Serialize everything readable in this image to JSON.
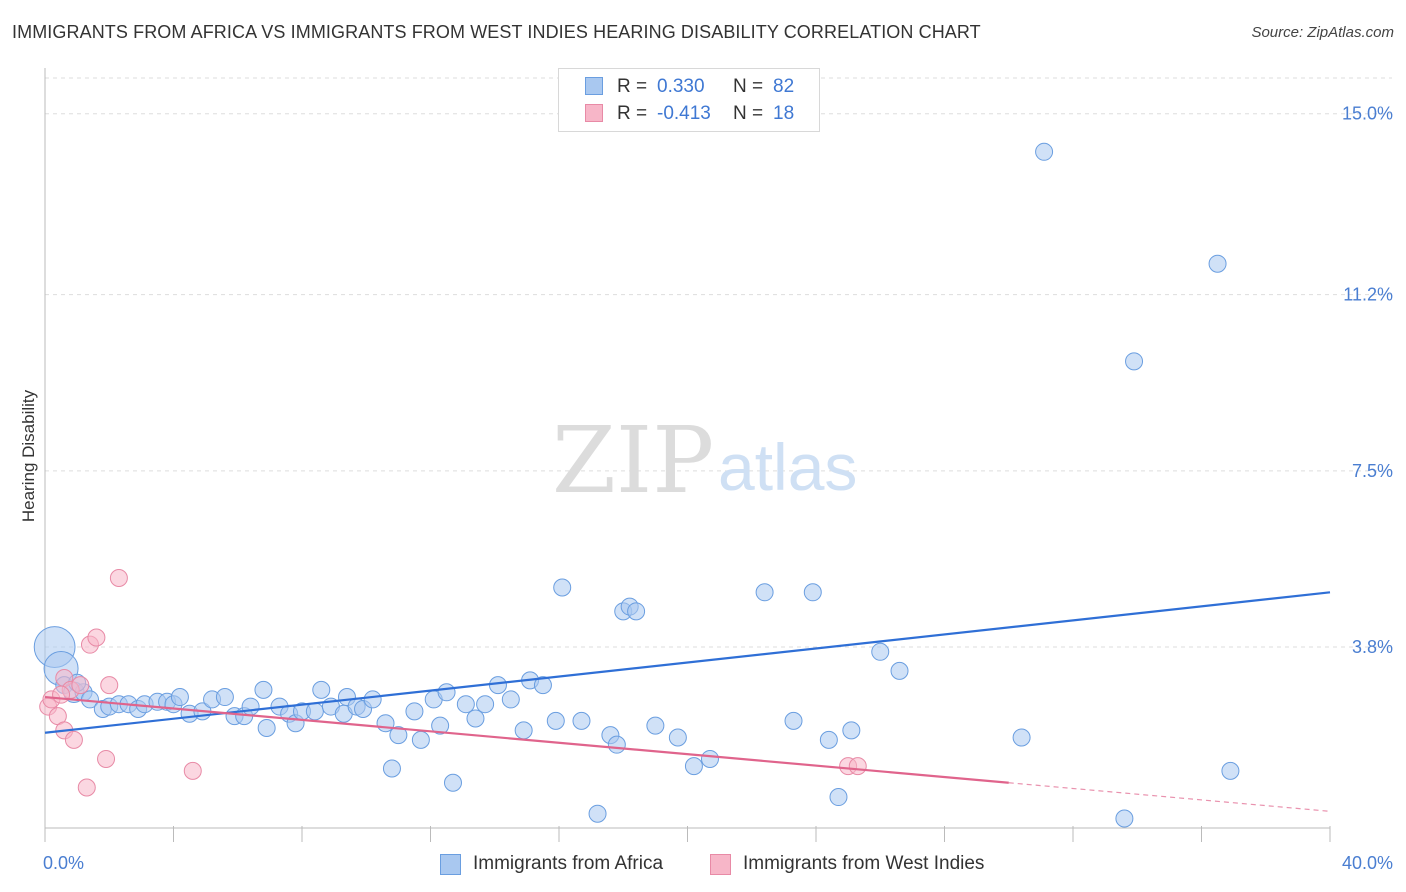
{
  "title": "IMMIGRANTS FROM AFRICA VS IMMIGRANTS FROM WEST INDIES HEARING DISABILITY CORRELATION CHART",
  "source": "Source: ZipAtlas.com",
  "watermark": {
    "part1": "ZIP",
    "part2": "atlas"
  },
  "colors": {
    "africa_fill": "#a9c8f0",
    "africa_stroke": "#6a9ee0",
    "africa_line": "#2f6fd6",
    "westindies_fill": "#f7b6c8",
    "westindies_stroke": "#e88aa6",
    "westindies_line": "#e0648c",
    "tick_text": "#4a7ed1",
    "grid": "#dddddd"
  },
  "legend": {
    "rows": [
      {
        "r_label": "R =",
        "r_value": "0.330",
        "n_label": "N =",
        "n_value": "82"
      },
      {
        "r_label": "R =",
        "r_value": "-0.413",
        "n_label": "N =",
        "n_value": "18"
      }
    ]
  },
  "bottom_legend": {
    "africa": "Immigrants from Africa",
    "westindies": "Immigrants from West Indies"
  },
  "chart_data": {
    "type": "scatter",
    "title": "IMMIGRANTS FROM AFRICA VS IMMIGRANTS FROM WEST INDIES HEARING DISABILITY CORRELATION CHART",
    "xlabel": "",
    "ylabel": "Hearing Disability",
    "xlim": [
      0,
      40
    ],
    "ylim": [
      0,
      15.75
    ],
    "x_tick_labels": [
      "0.0%",
      "40.0%"
    ],
    "y_ticks": [
      3.8,
      7.5,
      11.2,
      15.0
    ],
    "y_tick_labels": [
      "3.8%",
      "7.5%",
      "11.2%",
      "15.0%"
    ],
    "grid": true,
    "series": [
      {
        "name": "Immigrants from Africa",
        "trend": {
          "x": [
            0,
            40
          ],
          "y": [
            2.0,
            4.95
          ]
        },
        "points": [
          [
            0.3,
            3.8,
            2.4
          ],
          [
            0.5,
            3.35,
            2
          ],
          [
            0.6,
            3.0,
            1
          ],
          [
            0.9,
            2.85,
            1.2
          ],
          [
            1.2,
            2.85,
            1
          ],
          [
            1.4,
            2.7,
            1
          ],
          [
            1.8,
            2.5,
            1
          ],
          [
            2.0,
            2.55,
            1
          ],
          [
            2.3,
            2.6,
            1
          ],
          [
            2.6,
            2.6,
            1
          ],
          [
            2.9,
            2.5,
            1
          ],
          [
            3.1,
            2.6,
            1
          ],
          [
            3.5,
            2.65,
            1
          ],
          [
            3.8,
            2.65,
            1
          ],
          [
            4.0,
            2.6,
            1
          ],
          [
            4.2,
            2.75,
            1
          ],
          [
            4.5,
            2.4,
            1
          ],
          [
            4.9,
            2.45,
            1
          ],
          [
            5.2,
            2.7,
            1
          ],
          [
            5.6,
            2.75,
            1
          ],
          [
            5.9,
            2.35,
            1
          ],
          [
            6.2,
            2.35,
            1
          ],
          [
            6.4,
            2.55,
            1
          ],
          [
            6.8,
            2.9,
            1
          ],
          [
            6.9,
            2.1,
            1
          ],
          [
            7.3,
            2.55,
            1
          ],
          [
            7.6,
            2.4,
            1
          ],
          [
            7.8,
            2.2,
            1
          ],
          [
            8.0,
            2.45,
            1
          ],
          [
            8.4,
            2.45,
            1
          ],
          [
            8.6,
            2.9,
            1
          ],
          [
            8.9,
            2.55,
            1
          ],
          [
            9.3,
            2.4,
            1
          ],
          [
            9.4,
            2.75,
            1
          ],
          [
            9.7,
            2.55,
            1
          ],
          [
            9.9,
            2.5,
            1
          ],
          [
            10.2,
            2.7,
            1
          ],
          [
            10.6,
            2.2,
            1
          ],
          [
            10.8,
            1.25,
            1
          ],
          [
            11.0,
            1.95,
            1
          ],
          [
            11.5,
            2.45,
            1
          ],
          [
            11.7,
            1.85,
            1
          ],
          [
            12.1,
            2.7,
            1
          ],
          [
            12.3,
            2.15,
            1
          ],
          [
            12.5,
            2.85,
            1
          ],
          [
            12.7,
            0.95,
            1
          ],
          [
            13.1,
            2.6,
            1
          ],
          [
            13.4,
            2.3,
            1
          ],
          [
            13.7,
            2.6,
            1
          ],
          [
            14.1,
            3.0,
            1
          ],
          [
            14.5,
            2.7,
            1
          ],
          [
            14.9,
            2.05,
            1
          ],
          [
            15.1,
            3.1,
            1
          ],
          [
            15.5,
            3.0,
            1
          ],
          [
            15.9,
            2.25,
            1
          ],
          [
            16.1,
            5.05,
            1
          ],
          [
            16.7,
            2.25,
            1
          ],
          [
            17.2,
            0.3,
            1
          ],
          [
            17.6,
            1.95,
            1
          ],
          [
            17.8,
            1.75,
            1
          ],
          [
            18.0,
            4.55,
            1
          ],
          [
            18.2,
            4.65,
            1
          ],
          [
            18.4,
            4.55,
            1
          ],
          [
            19.0,
            2.15,
            1
          ],
          [
            19.7,
            1.9,
            1
          ],
          [
            20.2,
            1.3,
            1
          ],
          [
            20.7,
            1.45,
            1
          ],
          [
            22.4,
            4.95,
            1
          ],
          [
            23.3,
            2.25,
            1
          ],
          [
            23.9,
            4.95,
            1
          ],
          [
            24.4,
            1.85,
            1
          ],
          [
            24.7,
            0.65,
            1
          ],
          [
            25.1,
            2.05,
            1
          ],
          [
            26.0,
            3.7,
            1
          ],
          [
            26.6,
            3.3,
            1
          ],
          [
            30.4,
            1.9,
            1
          ],
          [
            31.1,
            14.2,
            1
          ],
          [
            33.6,
            0.2,
            1
          ],
          [
            33.9,
            9.8,
            1
          ],
          [
            36.5,
            11.85,
            1
          ],
          [
            36.9,
            1.2,
            1
          ],
          [
            1.0,
            3.05,
            1
          ]
        ]
      },
      {
        "name": "Immigrants from West Indies",
        "trend": {
          "x": [
            0,
            30
          ],
          "y": [
            2.75,
            0.95
          ]
        },
        "trend_dashed": {
          "x": [
            30,
            40
          ],
          "y": [
            0.95,
            0.35
          ]
        },
        "points": [
          [
            0.1,
            2.55,
            1
          ],
          [
            0.2,
            2.7,
            1
          ],
          [
            0.4,
            2.35,
            1
          ],
          [
            0.6,
            3.15,
            1
          ],
          [
            0.6,
            2.05,
            1
          ],
          [
            0.8,
            2.9,
            1
          ],
          [
            0.9,
            1.85,
            1
          ],
          [
            1.3,
            0.85,
            1
          ],
          [
            1.4,
            3.85,
            1
          ],
          [
            1.6,
            4.0,
            1
          ],
          [
            1.9,
            1.45,
            1
          ],
          [
            2.0,
            3.0,
            1
          ],
          [
            2.3,
            5.25,
            1
          ],
          [
            4.6,
            1.2,
            1
          ],
          [
            25.0,
            1.3,
            1
          ],
          [
            25.3,
            1.3,
            1
          ],
          [
            0.5,
            2.8,
            1
          ],
          [
            1.1,
            3.0,
            1
          ]
        ]
      }
    ]
  }
}
